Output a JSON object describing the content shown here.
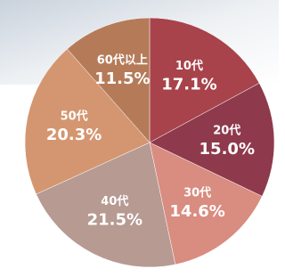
{
  "chart_data": {
    "type": "pie",
    "categories": [
      "10代",
      "20代",
      "30代",
      "40代",
      "50代",
      "60代以上"
    ],
    "values": [
      17.1,
      15.0,
      14.6,
      21.5,
      20.3,
      11.5
    ],
    "value_labels": [
      "17.1%",
      "15.0%",
      "14.6%",
      "21.5%",
      "20.3%",
      "11.5%"
    ],
    "colors": [
      "#a8434b",
      "#8e3a4c",
      "#d98c80",
      "#b79a92",
      "#d49670",
      "#b57b59"
    ]
  }
}
